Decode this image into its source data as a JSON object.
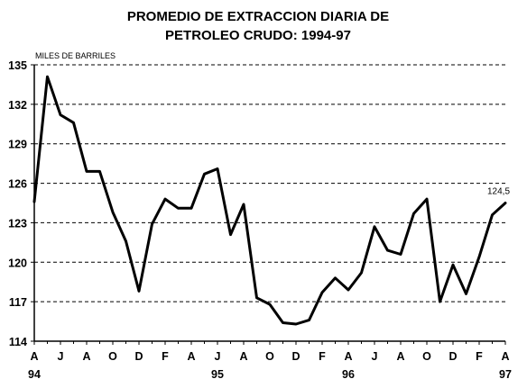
{
  "chart_data": {
    "type": "line",
    "title_line1": "PROMEDIO DE EXTRACCION DIARIA DE",
    "title_line2": "PETROLEO CRUDO: 1994-97",
    "unit_label": "MILES DE BARRILES",
    "ylim": [
      114,
      135
    ],
    "yticks": [
      114,
      117,
      120,
      123,
      126,
      129,
      132,
      135
    ],
    "grid": "horizontal-dashed",
    "legend": "none",
    "x_tick_labels": [
      "A",
      "J",
      "A",
      "O",
      "D",
      "F",
      "A",
      "J",
      "A",
      "O",
      "D",
      "F",
      "A",
      "J",
      "A",
      "O",
      "D",
      "F",
      "A"
    ],
    "x_year_labels": [
      {
        "tick_index": 0,
        "label": "94"
      },
      {
        "tick_index": 7,
        "label": "95"
      },
      {
        "tick_index": 12,
        "label": "96"
      },
      {
        "tick_index": 18,
        "label": "97"
      }
    ],
    "series": [
      {
        "color": "#000000",
        "values": [
          124.6,
          134.1,
          131.2,
          130.6,
          126.9,
          126.9,
          123.8,
          121.6,
          117.8,
          122.9,
          124.8,
          124.1,
          124.1,
          126.7,
          127.1,
          122.1,
          124.4,
          117.3,
          116.8,
          115.4,
          115.3,
          115.6,
          117.7,
          118.8,
          117.9,
          119.2,
          122.7,
          120.9,
          120.6,
          123.7,
          124.8,
          117.0,
          119.8,
          117.6,
          120.4,
          123.6,
          124.5
        ]
      }
    ],
    "last_value_label": "124,5"
  }
}
